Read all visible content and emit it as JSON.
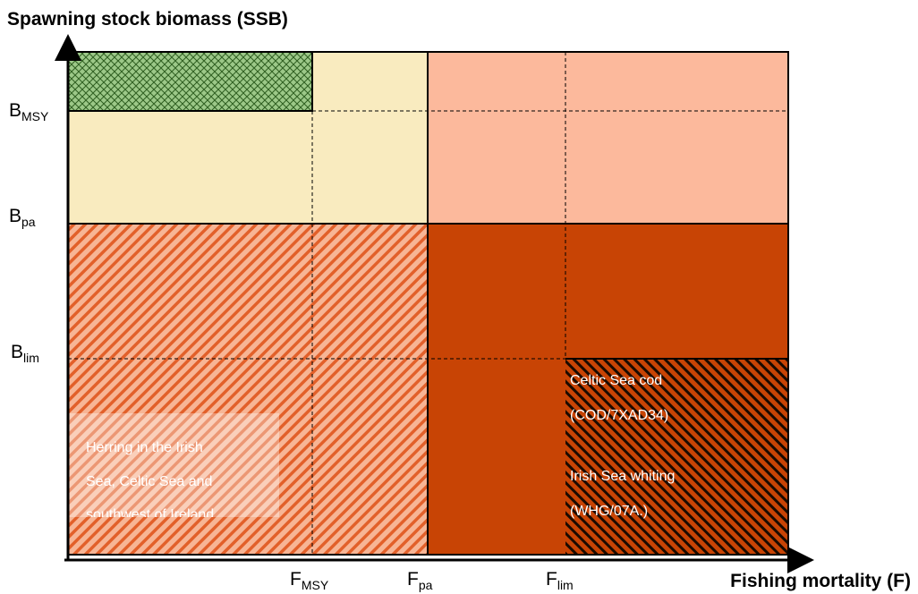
{
  "y_axis_label": "Spawning stock biomass (SSB)",
  "x_axis_label": "Fishing mortality (F)",
  "y_markers": [
    {
      "symbol": "B",
      "subscript": "MSY"
    },
    {
      "symbol": "B",
      "subscript": "pa"
    },
    {
      "symbol": "B",
      "subscript": "lim"
    }
  ],
  "x_markers": [
    {
      "symbol": "F",
      "subscript": "MSY"
    },
    {
      "symbol": "F",
      "subscript": "pa"
    },
    {
      "symbol": "F",
      "subscript": "lim"
    }
  ],
  "annotations": [
    {
      "lines": [
        "Herring  in the Irish",
        "Sea, Celtic Sea and",
        "southwest of Ireland"
      ]
    },
    {
      "lines": [
        "Celtic Sea cod",
        "(COD/7XAD34)",
        "Irish Sea whiting",
        "(WHG/07A.)"
      ]
    }
  ]
}
